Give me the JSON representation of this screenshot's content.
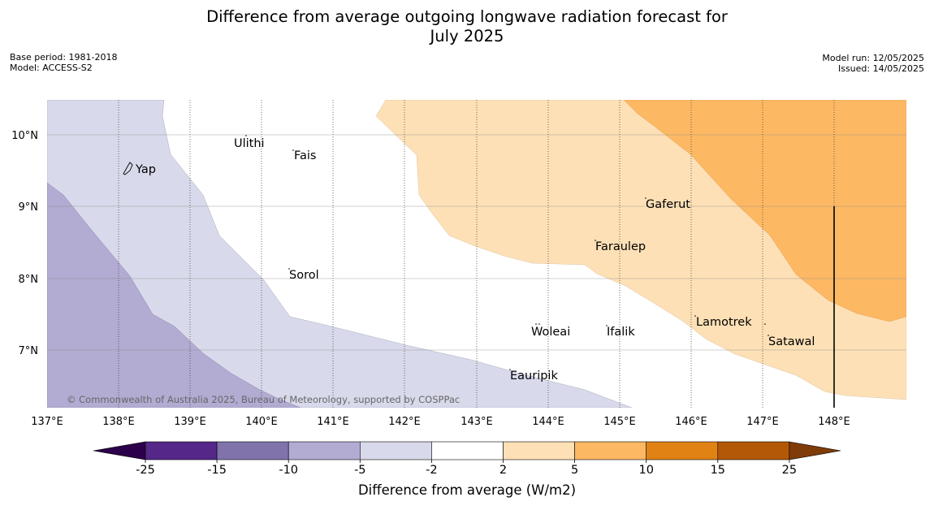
{
  "title_line1": "Difference from average outgoing longwave radiation forecast for",
  "title_line2": "July 2025",
  "base_period": "Base period: 1981-2018",
  "model": "Model: ACCESS-S2",
  "model_run": "Model run: 12/05/2025",
  "issued": "Issued: 14/05/2025",
  "credit": "© Commonwealth of Australia 2025, Bureau of Meteorology, supported by COSPPac",
  "lat_labels": [
    "10°N",
    "9°N",
    "8°N",
    "7°N"
  ],
  "lon_labels": [
    "137°E",
    "138°E",
    "139°E",
    "140°E",
    "141°E",
    "142°E",
    "143°E",
    "144°E",
    "145°E",
    "146°E",
    "147°E",
    "148°E"
  ],
  "places": [
    "Ulithi",
    "Fais",
    "Yap",
    "Gaferut",
    "Faraulep",
    "Sorol",
    "Lamotrek",
    "Woleai",
    "Ifalik",
    "Satawal",
    "Eauripik"
  ],
  "colorbar": {
    "ticks": [
      "-25",
      "-15",
      "-10",
      "-5",
      "-2",
      "2",
      "5",
      "10",
      "15",
      "25"
    ],
    "colors": [
      "#2d004b",
      "#542788",
      "#8073ac",
      "#b2abd2",
      "#d8daeb",
      "#ffffff",
      "#fee0b6",
      "#fdb863",
      "#e08214",
      "#b35806",
      "#7f3b08"
    ],
    "label": "Difference from average (W/m2)"
  },
  "map_colors": {
    "dark_purple": "#b2abd2",
    "light_purple": "#d8daeb",
    "light_orange": "#fee0b6",
    "orange": "#fdb863"
  }
}
